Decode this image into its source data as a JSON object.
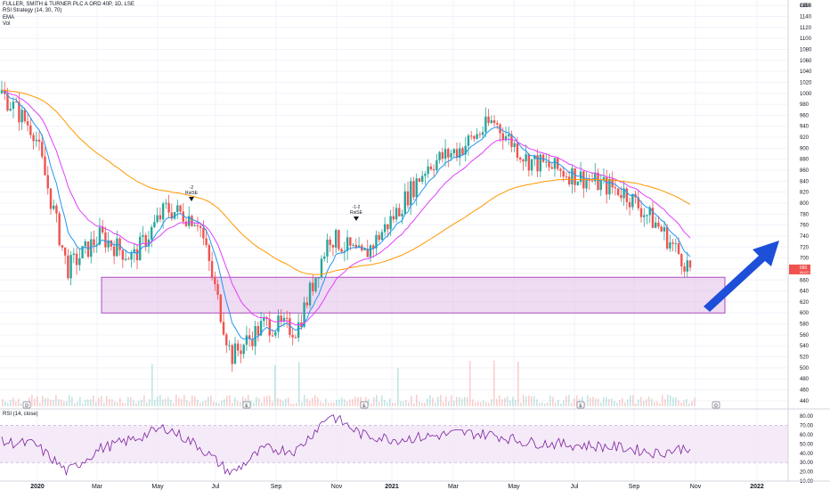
{
  "legend": {
    "symbol": "FULLER, SMITH & TURNER PLC A ORD 40P, 1D, LSE",
    "strategy": "RSI Strategy (14, 30, 70)",
    "ema": "EMA",
    "vol": "Vol",
    "rsi": "RSI (14, close)"
  },
  "price_axis": {
    "currency": "GBX",
    "current_price": "680",
    "countdown": "06:07:11",
    "labels": [
      "440",
      "460",
      "480",
      "500",
      "520",
      "540",
      "560",
      "580",
      "600",
      "620",
      "640",
      "660",
      "680",
      "700",
      "720",
      "740",
      "760",
      "780",
      "800",
      "820",
      "840",
      "860",
      "880",
      "900",
      "920",
      "940",
      "960",
      "980",
      "1000",
      "1020",
      "1040",
      "1060",
      "1080",
      "1100",
      "1120",
      "1140",
      "1160"
    ]
  },
  "rsi_axis": {
    "labels": [
      "10.00",
      "20.00",
      "30.00",
      "40.00",
      "50.00",
      "60.00",
      "70.00",
      "80.00"
    ]
  },
  "time_axis": {
    "labels": [
      {
        "text": "2020",
        "bold": true
      },
      {
        "text": "Mar",
        "bold": false
      },
      {
        "text": "May",
        "bold": false
      },
      {
        "text": "Jul",
        "bold": false
      },
      {
        "text": "Sep",
        "bold": false
      },
      {
        "text": "Nov",
        "bold": false
      },
      {
        "text": "2021",
        "bold": true
      },
      {
        "text": "Mar",
        "bold": false
      },
      {
        "text": "May",
        "bold": false
      },
      {
        "text": "Jul",
        "bold": false
      },
      {
        "text": "Sep",
        "bold": false
      },
      {
        "text": "Nov",
        "bold": false
      },
      {
        "text": "2022",
        "bold": true
      }
    ]
  },
  "signals": [
    {
      "text": "-2"
    },
    {
      "text": "RsiSE"
    },
    {
      "text": "-1-2"
    },
    {
      "text": "RsiSE"
    }
  ],
  "event_markers": [
    {
      "text": "D"
    },
    {
      "text": "E"
    },
    {
      "text": "E"
    },
    {
      "text": "E"
    },
    {
      "text": "D"
    }
  ],
  "colors": {
    "up": "#26a69a",
    "down": "#ef5350",
    "ema_fast": "#2196f3",
    "ema_mid": "#e040fb",
    "ema_slow": "#ff9800",
    "zone": "#e1bee7",
    "zone_border": "#9c27b0",
    "rsi": "#7b1fa2",
    "rsi_band": "#f3e5f5",
    "arrow": "#1e4fd8"
  },
  "chart_data": {
    "type": "candlestick",
    "title": "FULLER, SMITH & TURNER PLC A ORD 40P, 1D, LSE",
    "y_unit": "GBX",
    "ylim": [
      430,
      1170
    ],
    "x": [
      "2020-01",
      "2020-02",
      "2020-03",
      "2020-04",
      "2020-05",
      "2020-06",
      "2020-07",
      "2020-08",
      "2020-09",
      "2020-10",
      "2020-11",
      "2020-12",
      "2021-01",
      "2021-02",
      "2021-03",
      "2021-04",
      "2021-05",
      "2021-06",
      "2021-07",
      "2021-08",
      "2021-09",
      "2021-10"
    ],
    "close": [
      1000,
      930,
      680,
      740,
      700,
      790,
      770,
      520,
      580,
      570,
      740,
      700,
      780,
      870,
      900,
      950,
      880,
      860,
      840,
      820,
      760,
      680
    ],
    "demand_zone": [
      600,
      665
    ],
    "rsi": {
      "values": [
        52,
        50,
        20,
        45,
        55,
        68,
        48,
        18,
        45,
        43,
        82,
        60,
        55,
        58,
        62,
        60,
        52,
        50,
        48,
        46,
        40,
        47
      ],
      "ylim": [
        10,
        85
      ],
      "bands": [
        30,
        70
      ]
    }
  }
}
